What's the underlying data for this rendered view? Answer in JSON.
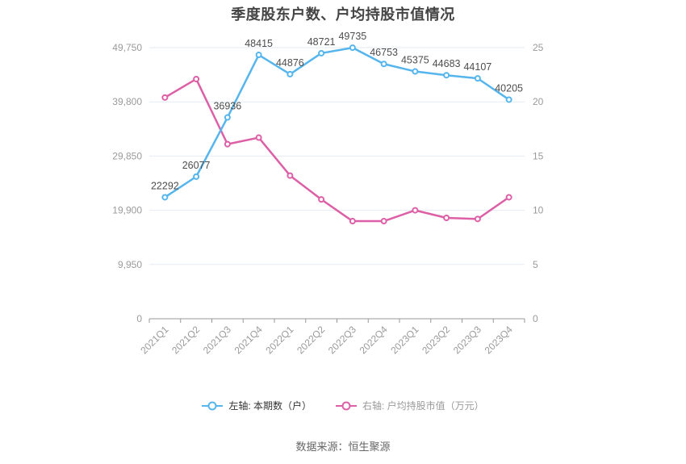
{
  "chart_data": {
    "type": "line",
    "title": "季度股东户数、户均持股市值情况",
    "source_note": "数据来源：恒生聚源",
    "categories": [
      "2021Q1",
      "2021Q2",
      "2021Q3",
      "2021Q4",
      "2022Q1",
      "2022Q2",
      "2022Q3",
      "2022Q4",
      "2023Q1",
      "2023Q2",
      "2023Q3",
      "2023Q4"
    ],
    "series": [
      {
        "name": "左轴: 本期数（户）",
        "axis": "left",
        "color": "#55b5ec",
        "values": [
          22292,
          26077,
          36936,
          48415,
          44876,
          48721,
          49735,
          46753,
          45375,
          44683,
          44107,
          40205
        ],
        "show_labels": true
      },
      {
        "name": "右轴: 户均持股市值（万元）",
        "axis": "right",
        "color": "#dd5fa6",
        "values": [
          20.4,
          22.1,
          16.1,
          16.7,
          13.2,
          11.0,
          9.0,
          9.0,
          10.0,
          9.3,
          9.2,
          11.2
        ],
        "show_labels": false
      }
    ],
    "left_axis": {
      "max": 49750,
      "ticks": [
        "0",
        "9,950",
        "19,900",
        "29,850",
        "39,800",
        "49,750"
      ]
    },
    "right_axis": {
      "max": 25,
      "ticks": [
        "0",
        "5",
        "10",
        "15",
        "20",
        "25"
      ]
    },
    "grid": true,
    "legend_position": "bottom",
    "colors": {
      "grid_line": "#e4ebf2",
      "axis_line": "#999999",
      "axis_label": "#9a9a9a",
      "data_label": "#4d4d4d",
      "title": "#454545"
    }
  }
}
